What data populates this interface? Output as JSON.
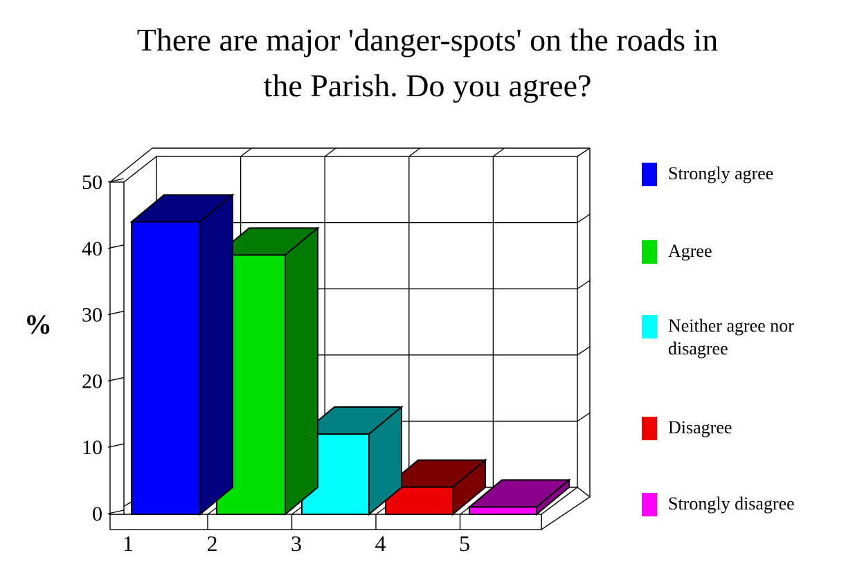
{
  "chart_data": {
    "type": "bar",
    "projection": "3d-oblique",
    "title_lines": [
      "There are major 'danger-spots' on the roads in",
      "the Parish. Do you agree?"
    ],
    "ylabel": "%",
    "categories": [
      "1",
      "2",
      "3",
      "4",
      "5"
    ],
    "values": [
      44,
      39,
      12,
      4,
      1
    ],
    "ylim": [
      0,
      50
    ],
    "y_ticks": [
      "0",
      "10",
      "20",
      "30",
      "40",
      "50"
    ],
    "grid": true,
    "wall_color": "#FFFFFF",
    "outline_color": "#000000",
    "legend": {
      "position": "right",
      "entries": [
        {
          "label": "Strongly agree",
          "color": "#0000FF",
          "shade": "#000080"
        },
        {
          "label": "Agree",
          "color": "#00E000",
          "shade": "#007A00"
        },
        {
          "label": "Neither agree nor disagree",
          "color": "#00FFFF",
          "shade": "#008080"
        },
        {
          "label": "Disagree",
          "color": "#EE0000",
          "shade": "#7D0000"
        },
        {
          "label": "Strongly disagree",
          "color": "#FF00FF",
          "shade": "#8B008B"
        }
      ]
    }
  }
}
